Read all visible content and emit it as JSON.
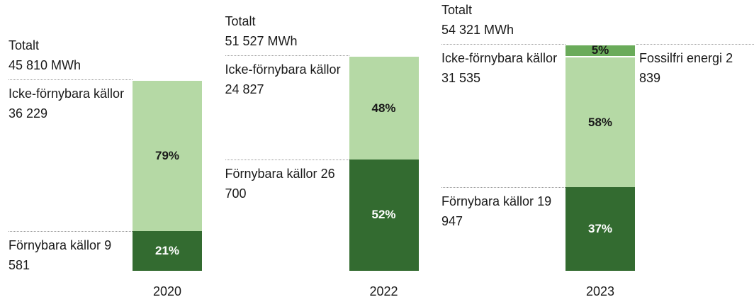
{
  "chart_data": {
    "type": "stacked-bar",
    "categories": [
      "2020",
      "2022",
      "2023"
    ],
    "total_title": "Totalt",
    "totals": [
      45810,
      51527,
      54321
    ],
    "total_labels": [
      "45 810 MWh",
      "51 527 MWh",
      "54 321 MWh"
    ],
    "series": [
      {
        "name": "Förnybara källor",
        "color": "#336b30",
        "label_color": "#ffffff",
        "values": [
          9581,
          26700,
          19947
        ],
        "value_labels": [
          "9 581",
          "26 700",
          "19 947"
        ],
        "shares": [
          21,
          52,
          37
        ],
        "share_labels": [
          "21%",
          "52%",
          "37%"
        ]
      },
      {
        "name": "Icke-förnybara källor",
        "color": "#b5d9a5",
        "label_color": "#1a1a1a",
        "values": [
          36229,
          24827,
          31535
        ],
        "value_labels": [
          "36 229",
          "24 827",
          "31 535"
        ],
        "shares": [
          79,
          48,
          58
        ],
        "share_labels": [
          "79%",
          "48%",
          "58%"
        ]
      },
      {
        "name": "Fossilfri energi",
        "color": "#6aab5a",
        "label_color": "#1a1a1a",
        "values": [
          null,
          null,
          2839
        ],
        "value_labels": [
          null,
          null,
          "2 839"
        ],
        "shares": [
          null,
          null,
          5
        ],
        "share_labels": [
          null,
          null,
          "5%"
        ]
      }
    ]
  }
}
